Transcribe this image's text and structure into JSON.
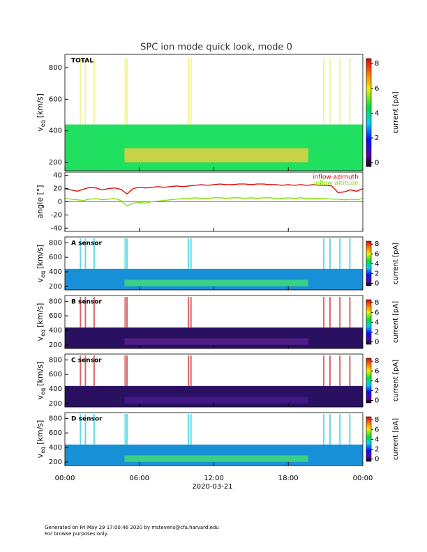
{
  "title": "SPC ion mode quick look, mode 0",
  "chart_data": [
    {
      "type": "heatmap",
      "label": "TOTAL",
      "ylabel": "v",
      "ylabel_sub": "eq",
      "ylabel_unit": "[km/s]",
      "ylim": [
        147,
        884
      ],
      "yticks": [
        200,
        400,
        600,
        800
      ],
      "colorbar": {
        "label": "current [pA]",
        "lim": [
          -0.3,
          8.4
        ],
        "ticks": [
          0,
          2,
          4,
          6,
          8
        ]
      }
    },
    {
      "type": "line",
      "ylabel": "angle [°]",
      "ylim": [
        -45,
        45
      ],
      "yticks": [
        -40,
        -20,
        0,
        20,
        40
      ],
      "legend": "upper right",
      "x": [
        0,
        0.5,
        1,
        1.5,
        2,
        2.5,
        3,
        3.5,
        4,
        4.5,
        5,
        5.5,
        6,
        6.5,
        7,
        7.5,
        8,
        8.5,
        9,
        9.5,
        10,
        10.5,
        11,
        11.5,
        12,
        12.5,
        13,
        13.5,
        14,
        14.5,
        15,
        15.5,
        16,
        16.5,
        17,
        17.5,
        18,
        18.5,
        19,
        19.5,
        20,
        20.5,
        21,
        21.5,
        22,
        22.5,
        23,
        23.5,
        24
      ],
      "series": [
        {
          "name": "inflow azimuth",
          "color": "#e00000",
          "values": [
            20,
            18,
            16,
            19,
            22,
            21,
            18,
            20,
            21,
            19,
            12,
            20,
            22,
            21,
            22,
            23,
            22,
            23,
            24,
            23,
            24,
            25,
            26,
            25,
            26,
            27,
            26,
            26,
            27,
            27,
            26,
            27,
            27,
            26,
            26,
            25,
            26,
            25,
            26,
            25,
            26,
            25,
            25,
            24,
            14,
            15,
            18,
            16,
            20
          ]
        },
        {
          "name": "inflow altitude",
          "color": "#7ee000",
          "values": [
            5,
            4,
            3,
            2,
            4,
            5,
            3,
            4,
            5,
            2,
            -6,
            -2,
            -1,
            -2,
            0,
            1,
            2,
            3,
            4,
            5,
            5,
            6,
            5,
            5,
            6,
            6,
            5,
            6,
            6,
            5,
            6,
            5,
            6,
            6,
            5,
            5,
            6,
            5,
            6,
            5,
            5,
            5,
            5,
            4,
            4,
            3,
            4,
            3,
            5
          ]
        }
      ]
    },
    {
      "type": "heatmap",
      "label": "A sensor",
      "ylabel": "v",
      "ylabel_sub": "eq",
      "ylabel_unit": "[km/s]",
      "ylim": [
        150,
        880
      ],
      "yticks": [
        200,
        400,
        600,
        800
      ],
      "colorbar": {
        "label": "current [pA]",
        "lim": [
          -0.5,
          8.6
        ],
        "ticks": [
          0,
          2,
          4,
          6,
          8
        ]
      }
    },
    {
      "type": "heatmap",
      "label": "B sensor",
      "ylabel": "v",
      "ylabel_sub": "eq",
      "ylabel_unit": "[km/s]",
      "ylim": [
        150,
        880
      ],
      "yticks": [
        200,
        400,
        600,
        800
      ],
      "colorbar": {
        "label": "current [pA]",
        "lim": [
          -0.5,
          8.6
        ],
        "ticks": [
          0,
          2,
          4,
          6,
          8
        ]
      }
    },
    {
      "type": "heatmap",
      "label": "C sensor",
      "ylabel": "v",
      "ylabel_sub": "eq",
      "ylabel_unit": "[km/s]",
      "ylim": [
        150,
        880
      ],
      "yticks": [
        200,
        400,
        600,
        800
      ],
      "colorbar": {
        "label": "current [pA]",
        "lim": [
          -0.5,
          8.6
        ],
        "ticks": [
          0,
          2,
          4,
          6,
          8
        ]
      }
    },
    {
      "type": "heatmap",
      "label": "D sensor",
      "ylabel": "v",
      "ylabel_sub": "eq",
      "ylabel_unit": "[km/s]",
      "ylim": [
        150,
        880
      ],
      "yticks": [
        200,
        400,
        600,
        800
      ],
      "colorbar": {
        "label": "current [pA]",
        "lim": [
          -0.5,
          8.6
        ],
        "ticks": [
          0,
          2,
          4,
          6,
          8
        ]
      },
      "xlabel": "2020-03-21",
      "xlim": [
        0,
        24
      ],
      "xticks": [
        {
          "value": 0,
          "label": "00:00"
        },
        {
          "value": 6,
          "label": "06:00"
        },
        {
          "value": 12,
          "label": "12:00"
        },
        {
          "value": 18,
          "label": "18:00"
        },
        {
          "value": 24,
          "label": "00:00"
        }
      ]
    }
  ],
  "footer": [
    "Generated on Fri May 29 17:00:46 2020 by mstevens@cfa.harvard.edu",
    "For browse purposes only."
  ]
}
